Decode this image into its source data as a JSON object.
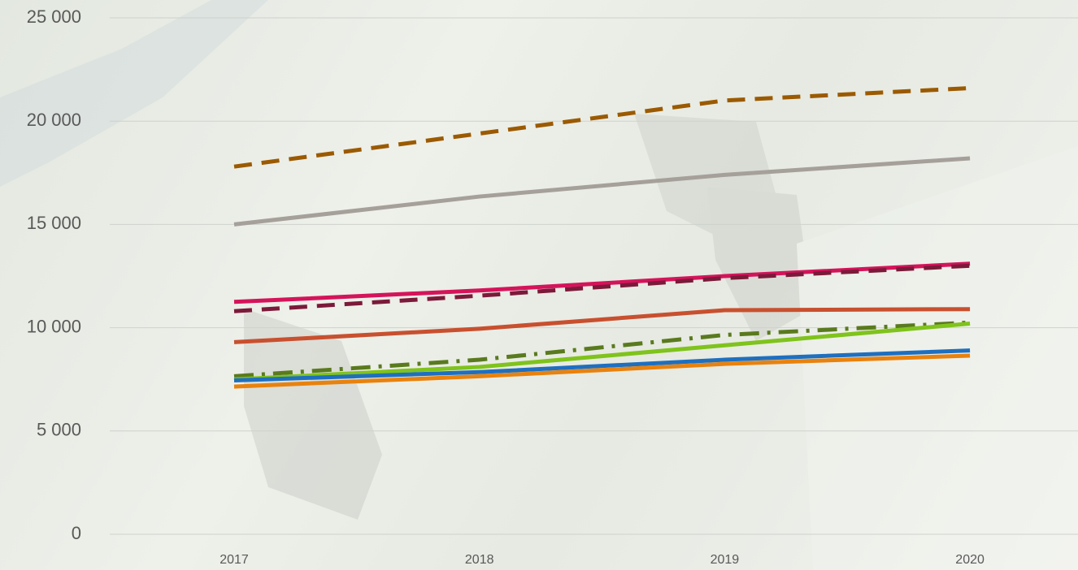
{
  "chart_data": {
    "type": "line",
    "categories": [
      "2017",
      "2018",
      "2019",
      "2020"
    ],
    "series": [
      {
        "color": "#9b5a00",
        "style": "dashed",
        "values": [
          17800,
          19400,
          21000,
          21600
        ]
      },
      {
        "color": "#a6a09a",
        "style": "solid",
        "values": [
          15000,
          16350,
          17400,
          18200
        ]
      },
      {
        "color": "#d4145a",
        "style": "solid",
        "values": [
          11250,
          11800,
          12500,
          13100
        ]
      },
      {
        "color": "#7b1a3a",
        "style": "dashed",
        "values": [
          10800,
          11550,
          12400,
          13000
        ]
      },
      {
        "color": "#c8502f",
        "style": "solid",
        "values": [
          9300,
          9950,
          10850,
          10900
        ]
      },
      {
        "color": "#5a7a1e",
        "style": "dashdot",
        "values": [
          7650,
          8450,
          9650,
          10250
        ]
      },
      {
        "color": "#7fc31c",
        "style": "solid",
        "values": [
          7500,
          8100,
          9150,
          10200
        ]
      },
      {
        "color": "#1f6fbf",
        "style": "solid",
        "values": [
          7450,
          7850,
          8450,
          8900
        ]
      },
      {
        "color": "#e8820e",
        "style": "solid",
        "values": [
          7150,
          7650,
          8250,
          8650
        ]
      }
    ],
    "ylim": [
      0,
      25000
    ],
    "yticks": [
      0,
      {
        "value": 5000,
        "label": "5 000"
      },
      {
        "value": 10000,
        "label": "10 000"
      },
      {
        "value": 15000,
        "label": "15 000"
      },
      {
        "value": 20000,
        "label": "20 000"
      },
      {
        "value": 25000,
        "label": "25 000"
      }
    ],
    "grid": true
  }
}
